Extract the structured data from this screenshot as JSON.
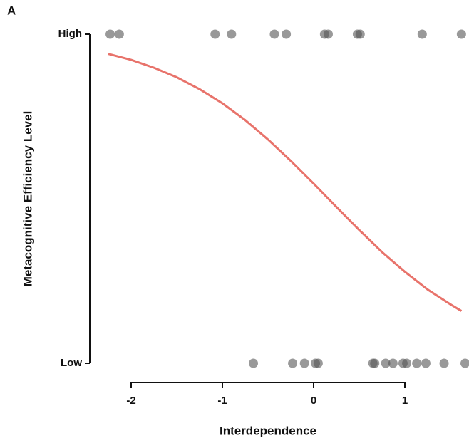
{
  "chart_data": {
    "type": "scatter",
    "panel_label": "A",
    "xlabel": "Interdependence",
    "ylabel": "Metacognitive Efficiency Level",
    "xlim": [
      -2.3,
      1.7
    ],
    "xticks": [
      -2,
      -1,
      0,
      1
    ],
    "ylim": [
      0,
      1
    ],
    "yticks": [
      {
        "value": 0,
        "label": "Low"
      },
      {
        "value": 1,
        "label": "High"
      }
    ],
    "series": [
      {
        "type": "scatter",
        "color": "#555555",
        "x": [
          -2.23,
          -2.13,
          -1.08,
          -0.9,
          -0.43,
          -0.3,
          0.12,
          0.16,
          0.48,
          0.51,
          1.19,
          1.62,
          -0.66,
          -0.23,
          -0.1,
          0.02,
          0.05,
          0.65,
          0.67,
          0.79,
          0.87,
          0.98,
          1.02,
          1.13,
          1.23,
          1.43,
          1.66
        ],
        "values": [
          1,
          1,
          1,
          1,
          1,
          1,
          1,
          1,
          1,
          1,
          1,
          1,
          0,
          0,
          0,
          0,
          0,
          0,
          0,
          0,
          0,
          0,
          0,
          0,
          0,
          0,
          0
        ]
      },
      {
        "type": "line",
        "color": "#e8736b",
        "x": [
          -2.25,
          -2.0,
          -1.75,
          -1.5,
          -1.25,
          -1.0,
          -0.75,
          -0.5,
          -0.25,
          0,
          0.25,
          0.5,
          0.75,
          1.0,
          1.25,
          1.5,
          1.62
        ],
        "values": [
          0.94,
          0.922,
          0.898,
          0.869,
          0.833,
          0.79,
          0.739,
          0.68,
          0.615,
          0.546,
          0.475,
          0.405,
          0.338,
          0.278,
          0.224,
          0.179,
          0.159
        ]
      }
    ]
  }
}
